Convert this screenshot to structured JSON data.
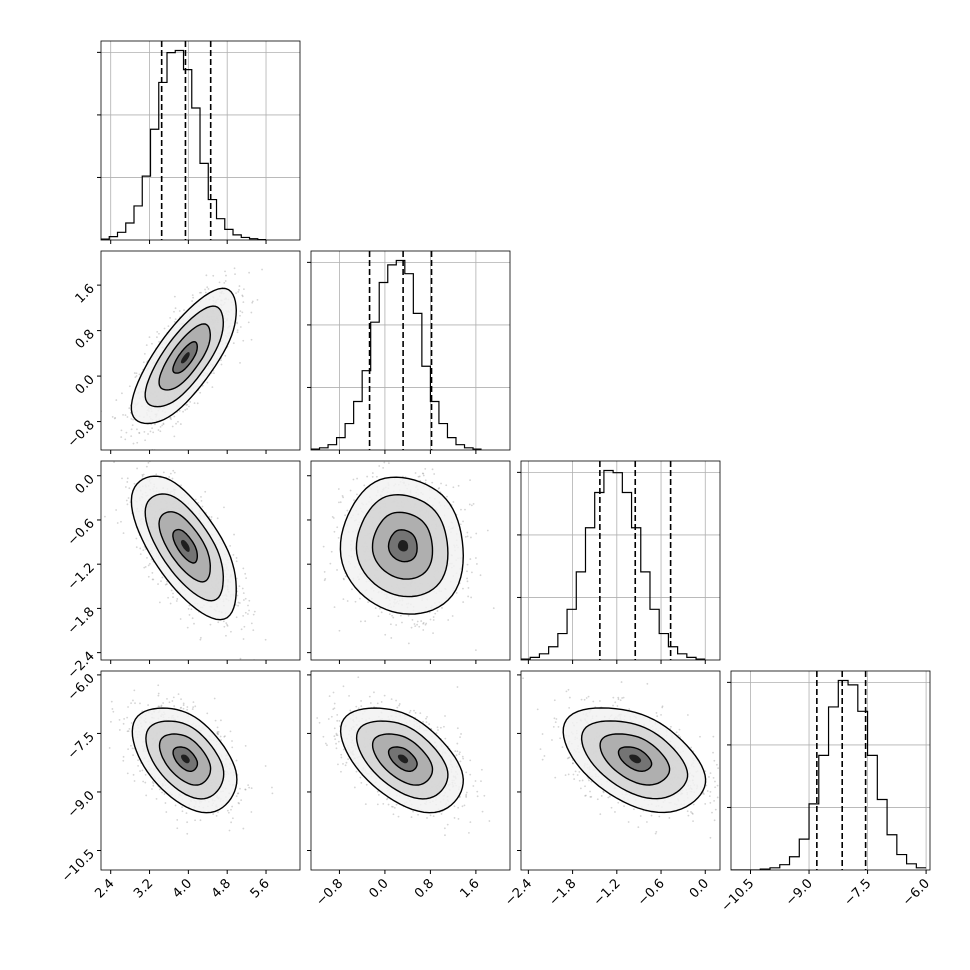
{
  "figure": {
    "kind": "corner-plot",
    "background": "#ffffff",
    "colors": {
      "line": "#000000",
      "grid": "#b0b0b0",
      "scatter": "#a0a0a0",
      "density_dark": "#000000"
    },
    "grid": true,
    "quantile_lines": "dashed"
  },
  "chart_data": [
    {
      "type": "histogram",
      "panel": "hist-0",
      "row": 0,
      "col": 0,
      "xlim": [
        2.2,
        6.3
      ],
      "xticks": [
        2.4,
        3.2,
        4.0,
        4.8,
        5.6
      ],
      "bin_edges_start": 2.2,
      "bin_width": 0.17,
      "counts": [
        2,
        8,
        18,
        40,
        80,
        150,
        260,
        370,
        440,
        445,
        400,
        310,
        180,
        95,
        50,
        25,
        12,
        6,
        3,
        1
      ],
      "quantiles": [
        3.45,
        3.94,
        4.46
      ]
    },
    {
      "type": "histogram",
      "panel": "hist-1",
      "row": 1,
      "col": 1,
      "xlim": [
        -1.3,
        2.2
      ],
      "xticks": [
        -0.8,
        0.0,
        0.8,
        1.6
      ],
      "bin_edges_start": -1.3,
      "bin_width": 0.15,
      "counts": [
        2,
        5,
        12,
        28,
        60,
        110,
        180,
        290,
        380,
        420,
        430,
        400,
        310,
        190,
        110,
        60,
        28,
        12,
        5,
        2
      ],
      "quantiles": [
        -0.27,
        0.32,
        0.82
      ]
    },
    {
      "type": "histogram",
      "panel": "hist-2",
      "row": 2,
      "col": 2,
      "xlim": [
        -2.5,
        0.2
      ],
      "xticks": [
        -2.4,
        -1.8,
        -1.2,
        -0.6,
        0.0
      ],
      "bin_edges_start": -2.5,
      "bin_width": 0.125,
      "counts": [
        2,
        6,
        14,
        30,
        60,
        115,
        200,
        300,
        380,
        430,
        425,
        380,
        300,
        200,
        115,
        60,
        30,
        14,
        6,
        2
      ],
      "quantiles": [
        -1.43,
        -0.95,
        -0.47
      ]
    },
    {
      "type": "histogram",
      "panel": "hist-3",
      "row": 3,
      "col": 3,
      "xlim": [
        -11.0,
        -5.9
      ],
      "xticks": [
        -10.5,
        -9.0,
        -7.5,
        -6.0
      ],
      "bin_edges_start": -11.0,
      "bin_width": 0.25,
      "counts": [
        0,
        0,
        0,
        2,
        5,
        12,
        30,
        70,
        150,
        260,
        370,
        430,
        420,
        360,
        260,
        160,
        80,
        35,
        14,
        5
      ],
      "quantiles": [
        -8.8,
        -8.15,
        -7.55
      ]
    },
    {
      "type": "scatter",
      "panel": "pair-1-0",
      "row": 1,
      "col": 0,
      "xlim": [
        2.2,
        6.3
      ],
      "ylim": [
        -1.3,
        2.2
      ],
      "yticks": [
        -0.8,
        0.0,
        0.8,
        1.6
      ],
      "mean": [
        3.94,
        0.32
      ],
      "sd": [
        0.5,
        0.55
      ],
      "rho": 0.72
    },
    {
      "type": "scatter",
      "panel": "pair-2-0",
      "row": 2,
      "col": 0,
      "xlim": [
        2.2,
        6.3
      ],
      "ylim": [
        -2.5,
        0.2
      ],
      "yticks": [
        -2.4,
        -1.8,
        -1.2,
        -0.6,
        0.0
      ],
      "mean": [
        3.94,
        -0.95
      ],
      "sd": [
        0.5,
        0.45
      ],
      "rho": -0.62
    },
    {
      "type": "scatter",
      "panel": "pair-2-1",
      "row": 2,
      "col": 1,
      "xlim": [
        -1.3,
        2.2
      ],
      "ylim": [
        -2.5,
        0.2
      ],
      "mean": [
        0.32,
        -0.95
      ],
      "sd": [
        0.5,
        0.45
      ],
      "rho": -0.05
    },
    {
      "type": "scatter",
      "panel": "pair-3-0",
      "row": 3,
      "col": 0,
      "xlim": [
        2.2,
        6.3
      ],
      "ylim": [
        -11.0,
        -5.9
      ],
      "yticks": [
        -10.5,
        -9.0,
        -7.5,
        -6.0
      ],
      "mean": [
        3.94,
        -8.15
      ],
      "sd": [
        0.5,
        0.62
      ],
      "rho": -0.42
    },
    {
      "type": "scatter",
      "panel": "pair-3-1",
      "row": 3,
      "col": 1,
      "xlim": [
        -1.3,
        2.2
      ],
      "ylim": [
        -11.0,
        -5.9
      ],
      "mean": [
        0.32,
        -8.15
      ],
      "sd": [
        0.5,
        0.62
      ],
      "rho": -0.45
    },
    {
      "type": "scatter",
      "panel": "pair-3-2",
      "row": 3,
      "col": 2,
      "xlim": [
        -2.5,
        0.2
      ],
      "ylim": [
        -11.0,
        -5.9
      ],
      "mean": [
        -0.95,
        -8.15
      ],
      "sd": [
        0.45,
        0.62
      ],
      "rho": -0.42
    }
  ]
}
